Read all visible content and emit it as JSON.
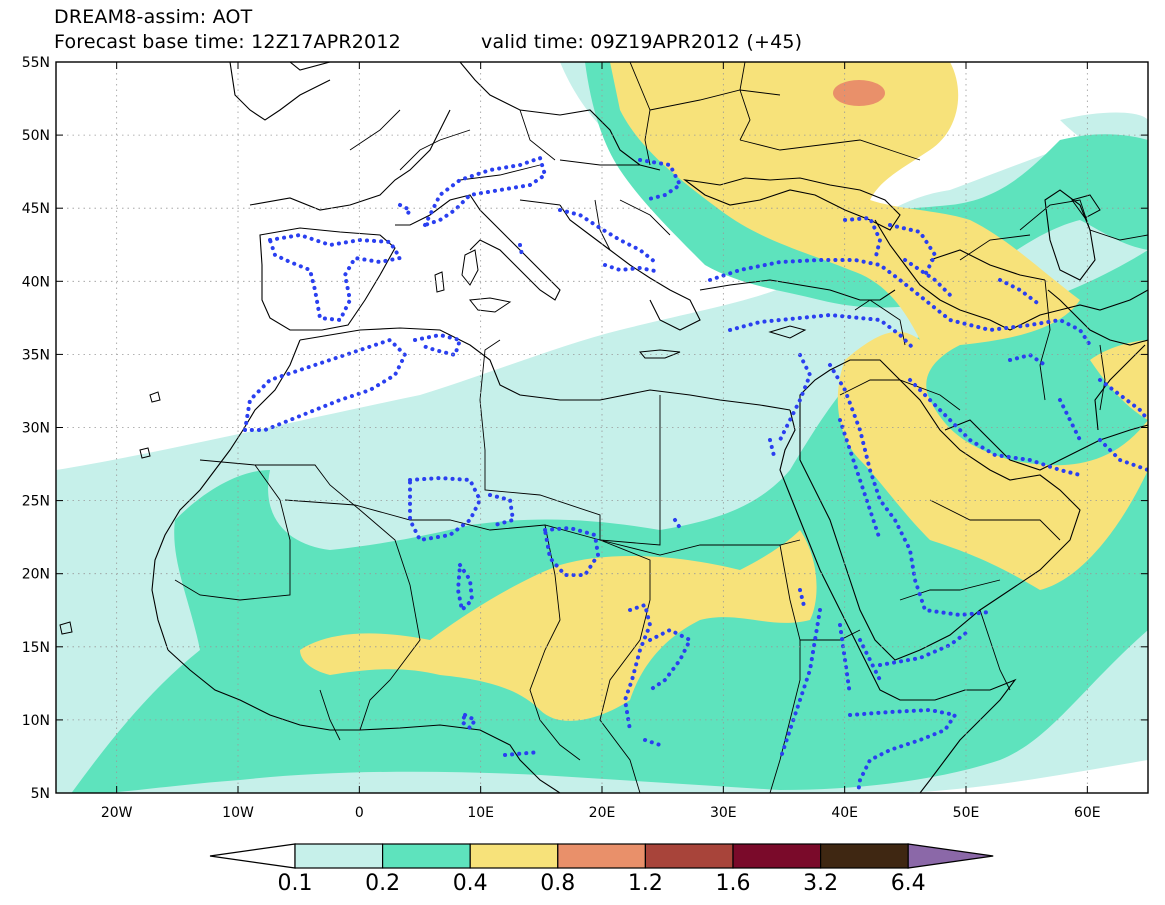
{
  "header": {
    "title": "DREAM8-assim: AOT",
    "base_time": "Forecast base time: 12Z17APR2012",
    "valid_time": "valid time: 09Z19APR2012 (+45)"
  },
  "map": {
    "lon_range": [
      -25,
      65
    ],
    "lat_range": [
      5,
      55
    ],
    "lon_ticks": [
      {
        "value": -20,
        "label": "20W"
      },
      {
        "value": -10,
        "label": "10W"
      },
      {
        "value": 0,
        "label": "0"
      },
      {
        "value": 10,
        "label": "10E"
      },
      {
        "value": 20,
        "label": "20E"
      },
      {
        "value": 30,
        "label": "30E"
      },
      {
        "value": 40,
        "label": "40E"
      },
      {
        "value": 50,
        "label": "50E"
      },
      {
        "value": 60,
        "label": "60E"
      }
    ],
    "lat_ticks": [
      {
        "value": 55,
        "label": "55N"
      },
      {
        "value": 50,
        "label": "50N"
      },
      {
        "value": 45,
        "label": "45N"
      },
      {
        "value": 40,
        "label": "40N"
      },
      {
        "value": 35,
        "label": "35N"
      },
      {
        "value": 30,
        "label": "30N"
      },
      {
        "value": 25,
        "label": "25N"
      },
      {
        "value": 20,
        "label": "20N"
      },
      {
        "value": 15,
        "label": "15N"
      },
      {
        "value": 10,
        "label": "10N"
      },
      {
        "value": 5,
        "label": "5N"
      }
    ],
    "gridlines": "dotted",
    "contour_style": "dotted blue"
  },
  "colorbar": {
    "levels": [
      "0.1",
      "0.2",
      "0.4",
      "0.8",
      "1.2",
      "1.6",
      "3.2",
      "6.4"
    ],
    "colors": [
      "#ffffff",
      "#c6f0ea",
      "#5ee3bd",
      "#f7e27a",
      "#e9906a",
      "#a8443a",
      "#7a0a2a",
      "#3f2712",
      "#8b68a8"
    ]
  },
  "colors": {
    "aot_0_1": "#c6f0ea",
    "aot_0_2": "#5ee3bd",
    "aot_0_4": "#f7e27a",
    "aot_0_8": "#e9906a",
    "contour": "#2a3ff0"
  }
}
